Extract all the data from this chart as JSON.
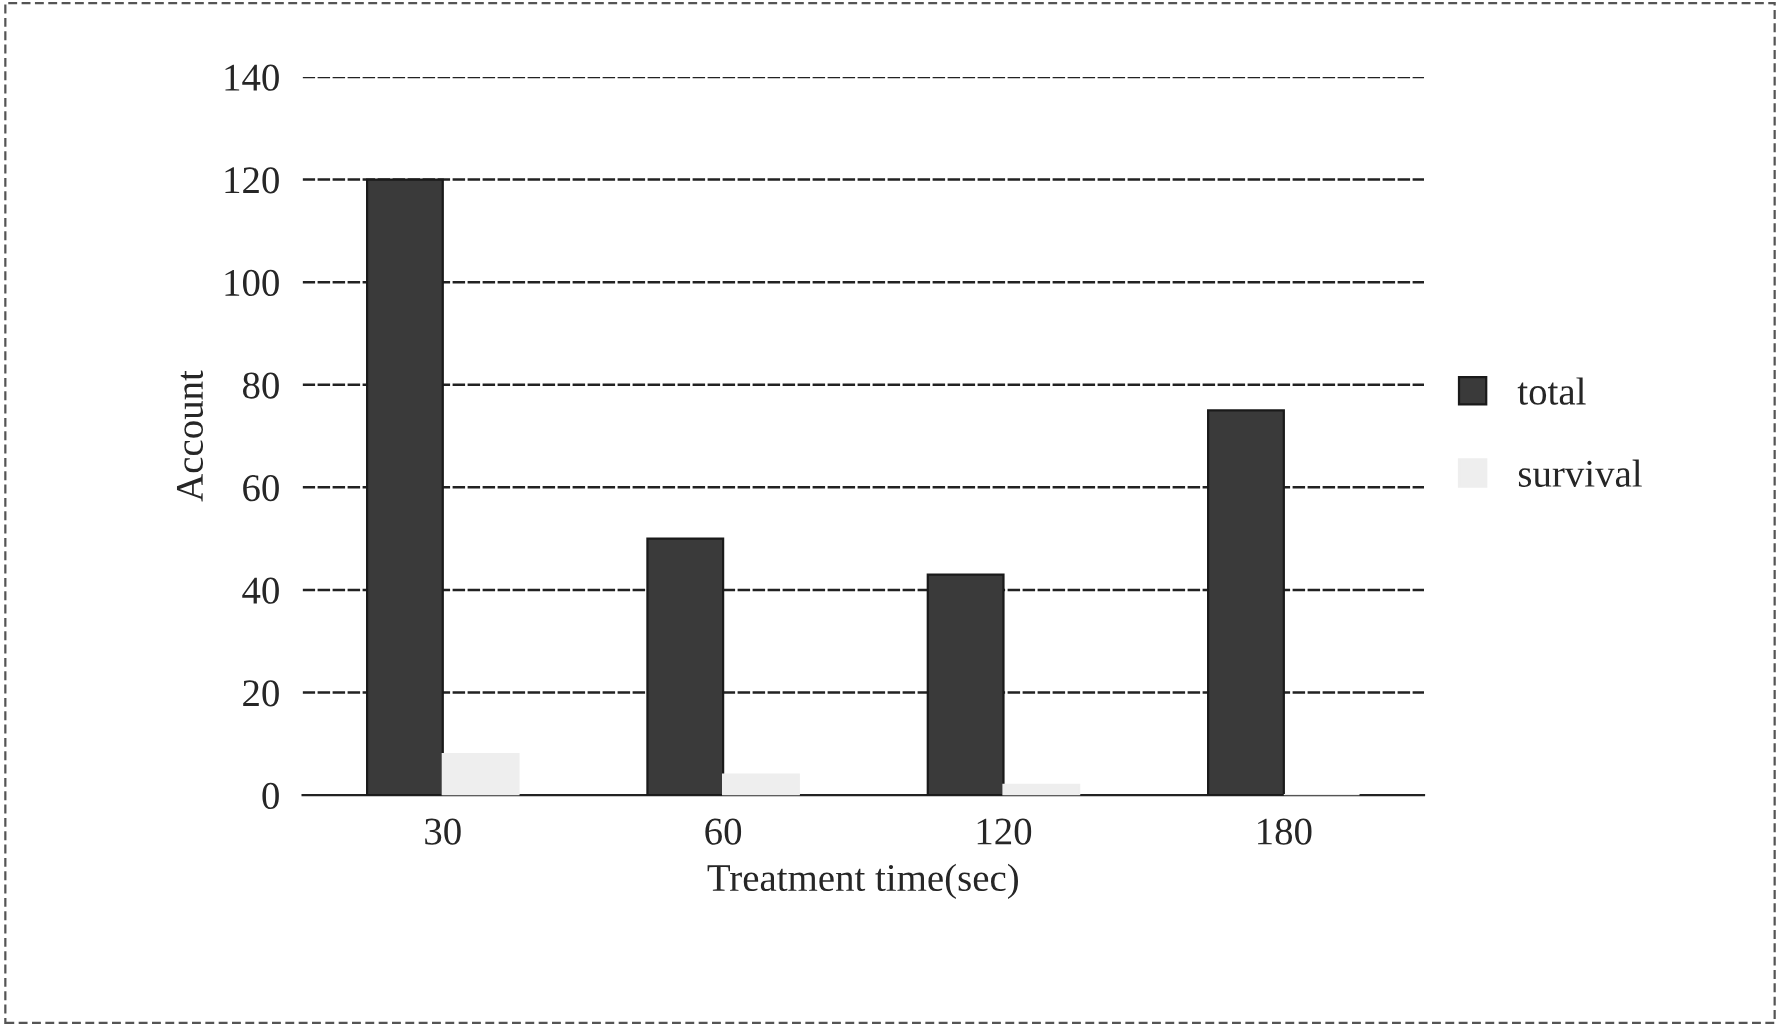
{
  "chart_data": {
    "type": "bar",
    "xlabel": "Treatment time(sec)",
    "ylabel": "Account",
    "categories": [
      "30",
      "60",
      "120",
      "180"
    ],
    "series": [
      {
        "name": "total",
        "color": "#3a3a3a",
        "values": [
          120,
          50,
          43,
          75
        ]
      },
      {
        "name": "survival",
        "color": "#eeeeee",
        "values": [
          8,
          4,
          2,
          0
        ]
      }
    ],
    "ylim": [
      0,
      140
    ],
    "yticks": [
      0,
      20,
      40,
      60,
      80,
      100,
      120,
      140
    ],
    "grid": "y",
    "legend": "right"
  }
}
